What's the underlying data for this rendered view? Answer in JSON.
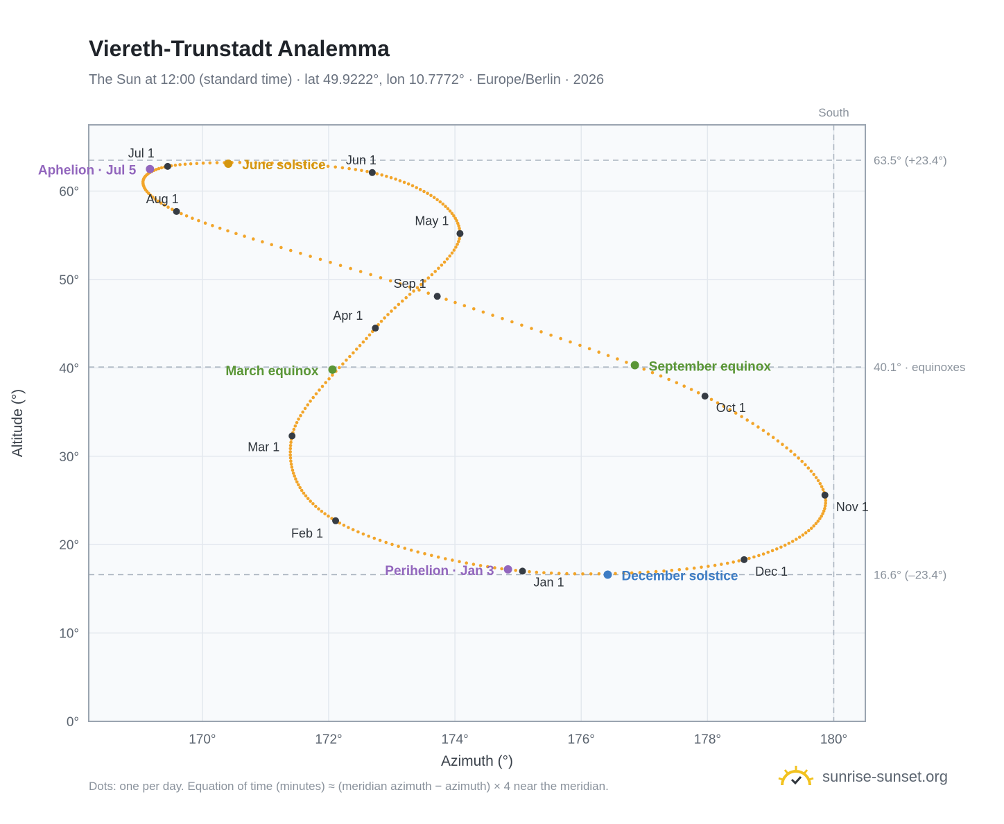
{
  "header": {
    "title": "Viereth-Trunstadt Analemma",
    "subtitle": "The Sun at 12:00 (standard time) · lat 49.9222°, lon 10.7772° · Europe/Berlin · 2026"
  },
  "footer": {
    "note": "Dots: one per day. Equation of time (minutes) ≈ (meridian azimuth − azimuth) × 4 near the meridian.",
    "brand": "sunrise-sunset.org"
  },
  "colors": {
    "path": "#f2a52a",
    "month_dot": "#363c44",
    "equinox": "#5a9636",
    "june_solstice": "#d4960f",
    "december_solstice": "#3d7cc4",
    "apsis": "#9266bd",
    "plot_bg": "#f8fafc",
    "grid": "#e3e8ee",
    "ref_line": "#a9b3bf",
    "frame": "#9aa4b0",
    "brand_sun": "#f2c21f"
  },
  "chart_data": {
    "type": "scatter",
    "title": "Viereth-Trunstadt Analemma",
    "xlabel": "Azimuth (°)",
    "ylabel": "Altitude (°)",
    "xlim": [
      168.2,
      180.5
    ],
    "ylim": [
      0,
      67.5
    ],
    "x_ticks": [
      170,
      172,
      174,
      176,
      178,
      180
    ],
    "x_tick_labels": [
      "170°",
      "172°",
      "174°",
      "176°",
      "178°",
      "180°"
    ],
    "y_ticks": [
      0,
      10,
      20,
      30,
      40,
      50,
      60
    ],
    "y_tick_labels": [
      "0°",
      "10°",
      "20°",
      "30°",
      "40°",
      "50°",
      "60°"
    ],
    "grid": true,
    "meridian": {
      "azimuth": 180,
      "label": "South"
    },
    "reference_lines": [
      {
        "altitude": 63.5,
        "label": "63.5° (+23.4°)"
      },
      {
        "altitude": 40.1,
        "label": "40.1° · equinoxes"
      },
      {
        "altitude": 16.6,
        "label": "16.6° (–23.4°)"
      }
    ],
    "month_points": [
      {
        "label": "Jan 1",
        "az": 175.07,
        "alt": 17.0
      },
      {
        "label": "Feb 1",
        "az": 172.11,
        "alt": 22.7
      },
      {
        "label": "Mar 1",
        "az": 171.42,
        "alt": 32.3
      },
      {
        "label": "Apr 1",
        "az": 172.74,
        "alt": 44.5
      },
      {
        "label": "May 1",
        "az": 174.08,
        "alt": 55.2
      },
      {
        "label": "Jun 1",
        "az": 172.69,
        "alt": 62.1
      },
      {
        "label": "Jul 1",
        "az": 169.45,
        "alt": 62.8
      },
      {
        "label": "Aug 1",
        "az": 169.59,
        "alt": 57.7
      },
      {
        "label": "Sep 1",
        "az": 173.72,
        "alt": 48.1
      },
      {
        "label": "Oct 1",
        "az": 177.96,
        "alt": 36.8
      },
      {
        "label": "Nov 1",
        "az": 179.86,
        "alt": 25.6
      },
      {
        "label": "Dec 1",
        "az": 178.58,
        "alt": 18.3
      }
    ],
    "events": [
      {
        "label": "Perihelion · Jan 3",
        "az": 174.84,
        "alt": 17.2,
        "kind": "apsis"
      },
      {
        "label": "March equinox",
        "az": 172.06,
        "alt": 39.8,
        "kind": "equinox"
      },
      {
        "label": "June solstice",
        "az": 170.41,
        "alt": 63.1,
        "kind": "june_solstice"
      },
      {
        "label": "Aphelion · Jul 5",
        "az": 169.17,
        "alt": 62.5,
        "kind": "apsis"
      },
      {
        "label": "September equinox",
        "az": 176.85,
        "alt": 40.3,
        "kind": "equinox"
      },
      {
        "label": "December solstice",
        "az": 176.42,
        "alt": 16.6,
        "kind": "december_solstice"
      }
    ]
  }
}
